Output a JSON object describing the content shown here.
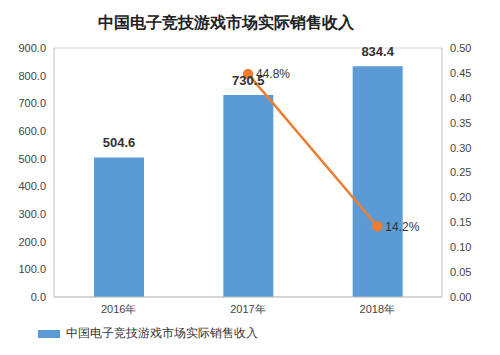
{
  "chart_data": {
    "type": "bar",
    "title": "中国电子竞技游戏市场实际销售收入",
    "categories": [
      "2016年",
      "2017年",
      "2018年"
    ],
    "series": [
      {
        "name": "中国电子竞技游戏市场实际销售收入",
        "type": "bar",
        "color": "#5b9bd5",
        "values": [
          504.6,
          730.5,
          834.4
        ],
        "data_labels": true
      },
      {
        "type": "line",
        "axis": "y2",
        "color": "#ed7d31",
        "marker": "circle",
        "values": [
          null,
          0.448,
          0.142
        ],
        "value_labels": [
          null,
          "44.8%",
          "14.2%"
        ],
        "data_labels": true
      }
    ],
    "ylim": [
      0,
      900
    ],
    "yticks": [
      {
        "value": 0,
        "label": "0.0"
      },
      {
        "value": 100,
        "label": "100.0"
      },
      {
        "value": 200,
        "label": "200.0"
      },
      {
        "value": 300,
        "label": "300.0"
      },
      {
        "value": 400,
        "label": "400.0"
      },
      {
        "value": 500,
        "label": "500.0"
      },
      {
        "value": 600,
        "label": "600.0"
      },
      {
        "value": 700,
        "label": "700.0"
      },
      {
        "value": 800,
        "label": "800.0"
      },
      {
        "value": 900,
        "label": "900.0"
      }
    ],
    "y2lim": [
      0,
      0.5
    ],
    "y2ticks": [
      {
        "value": 0,
        "label": "0.00"
      },
      {
        "value": 0.05,
        "label": "0.05"
      },
      {
        "value": 0.1,
        "label": "0.10"
      },
      {
        "value": 0.15,
        "label": "0.15"
      },
      {
        "value": 0.2,
        "label": "0.20"
      },
      {
        "value": 0.25,
        "label": "0.25"
      },
      {
        "value": 0.3,
        "label": "0.30"
      },
      {
        "value": 0.35,
        "label": "0.35"
      },
      {
        "value": 0.4,
        "label": "0.40"
      },
      {
        "value": 0.45,
        "label": "0.45"
      },
      {
        "value": 0.5,
        "label": "0.50"
      }
    ],
    "grid": true,
    "legend": "bottom"
  }
}
